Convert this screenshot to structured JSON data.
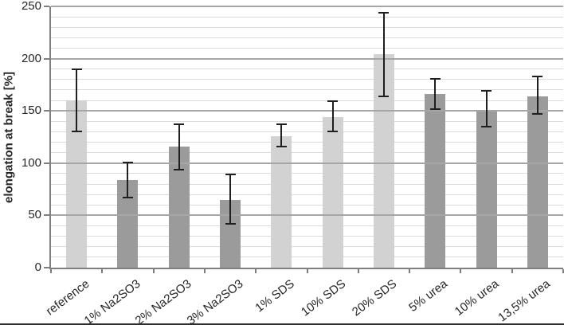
{
  "chart_data": {
    "type": "bar",
    "title": "",
    "xlabel": "",
    "ylabel": "elongation at break [%]",
    "ylim": [
      0,
      250
    ],
    "yticks": [
      0,
      50,
      100,
      150,
      200,
      250
    ],
    "ytick_step": 50,
    "yminor_step": 10,
    "grid": "horizontal, minor every 10 (light), major every 50 (dark, drawn over bars)",
    "legend": "none",
    "categories": [
      "reference",
      "1% Na2SO3",
      "2% Na2SO3",
      "3% Na2SO3",
      "1% SDS",
      "10% SDS",
      "20% SDS",
      "5% urea",
      "10% urea",
      "13,5% urea"
    ],
    "values": [
      160,
      84,
      116,
      65,
      126,
      144,
      204,
      166,
      151,
      164
    ],
    "error_low": [
      130,
      67,
      94,
      42,
      116,
      130,
      164,
      152,
      135,
      147
    ],
    "error_high": [
      190,
      101,
      137,
      89,
      137,
      159,
      244,
      181,
      169,
      183
    ],
    "bar_colors": [
      "#d2d2d2",
      "#9b9b9b",
      "#9b9b9b",
      "#9b9b9b",
      "#d2d2d2",
      "#d2d2d2",
      "#d2d2d2",
      "#9b9b9b",
      "#9b9b9b",
      "#9b9b9b"
    ],
    "colors": {
      "bar_light": "#d2d2d2",
      "bar_dark": "#9b9b9b",
      "grid_major": "#a6a6a6",
      "grid_minor": "#dbdbdb",
      "axis_line": "#7f7f7f",
      "error_bar": "#1f1f1f",
      "text": "#262626"
    }
  }
}
